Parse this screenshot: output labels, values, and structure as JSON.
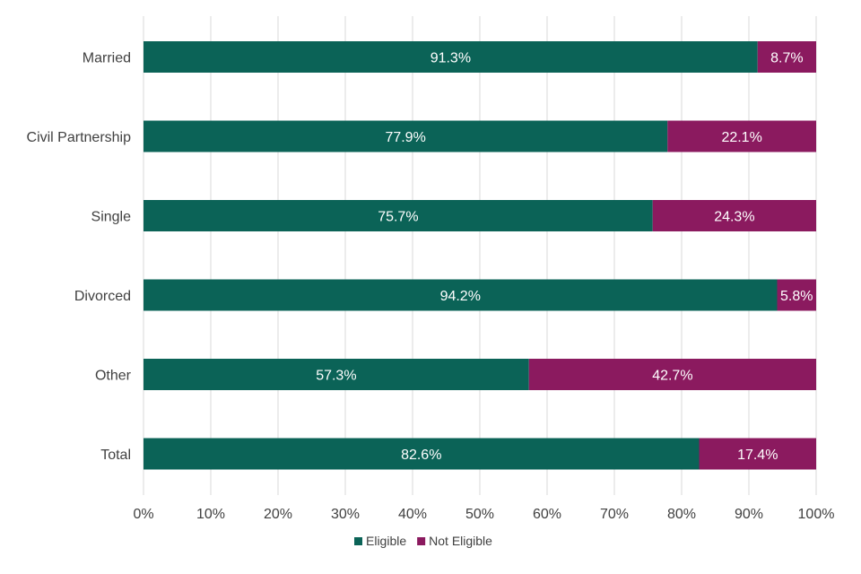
{
  "chart_data": {
    "type": "bar",
    "orientation": "horizontal",
    "stacked": true,
    "categories": [
      "Married",
      "Civil Partnership",
      "Single",
      "Divorced",
      "Other",
      "Total"
    ],
    "series": [
      {
        "name": "Eligible",
        "color": "#0b6357",
        "values": [
          91.3,
          77.9,
          75.7,
          94.2,
          57.3,
          82.6
        ],
        "labels": [
          "91.3%",
          "77.9%",
          "75.7%",
          "94.2%",
          "57.3%",
          "82.6%"
        ]
      },
      {
        "name": "Not Eligible",
        "color": "#8b1a5f",
        "values": [
          8.7,
          22.1,
          24.3,
          5.8,
          42.7,
          17.4
        ],
        "labels": [
          "8.7%",
          "22.1%",
          "24.3%",
          "5.8%",
          "42.7%",
          "17.4%"
        ]
      }
    ],
    "xlim": [
      0,
      100
    ],
    "xticks": [
      0,
      10,
      20,
      30,
      40,
      50,
      60,
      70,
      80,
      90,
      100
    ],
    "xtick_labels": [
      "0%",
      "10%",
      "20%",
      "30%",
      "40%",
      "50%",
      "60%",
      "70%",
      "80%",
      "90%",
      "100%"
    ],
    "title": "",
    "xlabel": "",
    "ylabel": "",
    "grid": true,
    "legend_position": "bottom"
  }
}
